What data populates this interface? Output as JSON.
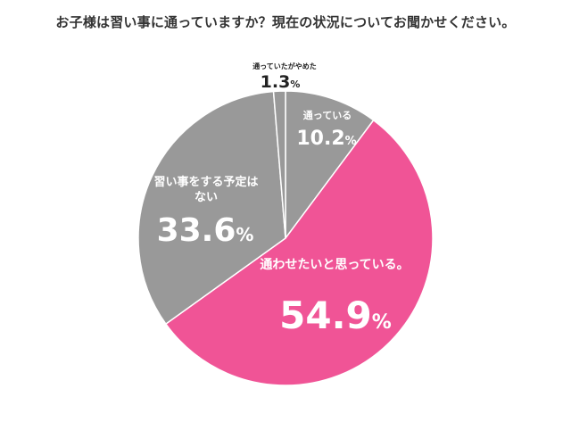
{
  "chart_data": {
    "type": "pie",
    "title": "お子様は習い事に通っていますか？現在の状況についてお聞かせください。",
    "slices": [
      {
        "label": "通っている",
        "value": 10.2,
        "display": "10.2",
        "color": "#999999"
      },
      {
        "label": "通わせたいと思っている。",
        "value": 54.9,
        "display": "54.9",
        "color": "#f05496"
      },
      {
        "label": "習い事をする予定は\nない",
        "label_lines": [
          "習い事をする予定は",
          "ない"
        ],
        "value": 33.6,
        "display": "33.6",
        "color": "#999999"
      },
      {
        "label": "通っていたがやめた",
        "value": 1.3,
        "display": "1.3",
        "color": "#999999"
      }
    ],
    "unit": "%"
  }
}
